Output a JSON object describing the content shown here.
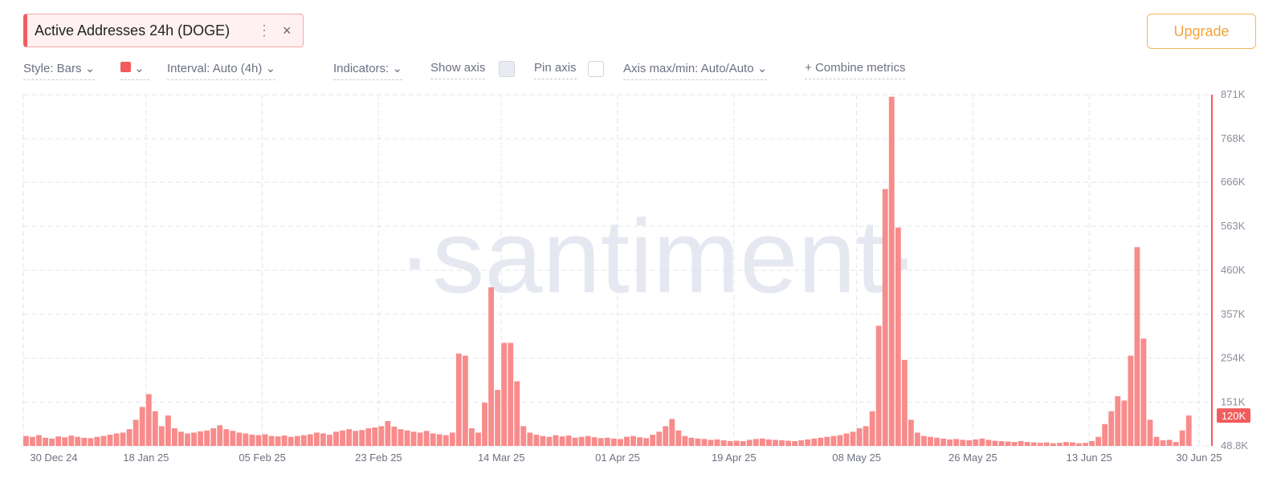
{
  "header": {
    "metric": "Active Addresses 24h (DOGE)",
    "menu": "⋮",
    "close": "×",
    "upgrade": "Upgrade"
  },
  "toolbar": {
    "style": "Style: Bars",
    "interval": "Interval: Auto (4h)",
    "indicators": "Indicators:",
    "show_axis": "Show axis",
    "pin_axis": "Pin axis",
    "axis_maxmin": "Axis max/min: Auto/Auto",
    "combine": "Combine metrics",
    "combine_icon": "+"
  },
  "watermark": "·santiment·",
  "chart_data": {
    "type": "bar",
    "color": "#f88b8b",
    "axis_color": "#f25c5c",
    "grid": true,
    "ylim": [
      48.8,
      871
    ],
    "yticks": [
      {
        "value": 48.8,
        "label": "48.8K"
      },
      {
        "value": 151,
        "label": "151K"
      },
      {
        "value": 254,
        "label": "254K"
      },
      {
        "value": 357,
        "label": "357K"
      },
      {
        "value": 460,
        "label": "460K"
      },
      {
        "value": 563,
        "label": "563K"
      },
      {
        "value": 666,
        "label": "666K"
      },
      {
        "value": 768,
        "label": "768K"
      },
      {
        "value": 871,
        "label": "871K"
      }
    ],
    "xlim": [
      "2024-12-30",
      "2025-07-02"
    ],
    "xticks": [
      {
        "value": "2024-12-30",
        "label": "30 Dec 24"
      },
      {
        "value": "2025-01-18",
        "label": "18 Jan 25"
      },
      {
        "value": "2025-02-05",
        "label": "05 Feb 25"
      },
      {
        "value": "2025-02-23",
        "label": "23 Feb 25"
      },
      {
        "value": "2025-03-14",
        "label": "14 Mar 25"
      },
      {
        "value": "2025-04-01",
        "label": "01 Apr 25"
      },
      {
        "value": "2025-04-19",
        "label": "19 Apr 25"
      },
      {
        "value": "2025-05-08",
        "label": "08 May 25"
      },
      {
        "value": "2025-05-26",
        "label": "26 May 25"
      },
      {
        "value": "2025-06-13",
        "label": "13 Jun 25"
      },
      {
        "value": "2025-06-30",
        "label": "30 Jun 25"
      }
    ],
    "current_value": 120,
    "current_value_label": "120K",
    "x": [
      "2024-12-30",
      "2024-12-31",
      "2025-01-01",
      "2025-01-02",
      "2025-01-03",
      "2025-01-04",
      "2025-01-05",
      "2025-01-06",
      "2025-01-07",
      "2025-01-08",
      "2025-01-09",
      "2025-01-10",
      "2025-01-11",
      "2025-01-12",
      "2025-01-13",
      "2025-01-14",
      "2025-01-15",
      "2025-01-16",
      "2025-01-17",
      "2025-01-18",
      "2025-01-19",
      "2025-01-20",
      "2025-01-21",
      "2025-01-22",
      "2025-01-23",
      "2025-01-24",
      "2025-01-25",
      "2025-01-26",
      "2025-01-27",
      "2025-01-28",
      "2025-01-29",
      "2025-01-30",
      "2025-01-31",
      "2025-02-01",
      "2025-02-02",
      "2025-02-03",
      "2025-02-04",
      "2025-02-05",
      "2025-02-06",
      "2025-02-07",
      "2025-02-08",
      "2025-02-09",
      "2025-02-10",
      "2025-02-11",
      "2025-02-12",
      "2025-02-13",
      "2025-02-14",
      "2025-02-15",
      "2025-02-16",
      "2025-02-17",
      "2025-02-18",
      "2025-02-19",
      "2025-02-20",
      "2025-02-21",
      "2025-02-22",
      "2025-02-23",
      "2025-02-24",
      "2025-02-25",
      "2025-02-26",
      "2025-02-27",
      "2025-02-28",
      "2025-03-01",
      "2025-03-02",
      "2025-03-03",
      "2025-03-04",
      "2025-03-05",
      "2025-03-06",
      "2025-03-07",
      "2025-03-08",
      "2025-03-09",
      "2025-03-10",
      "2025-03-11",
      "2025-03-12",
      "2025-03-13",
      "2025-03-14",
      "2025-03-15",
      "2025-03-16",
      "2025-03-17",
      "2025-03-18",
      "2025-03-19",
      "2025-03-20",
      "2025-03-21",
      "2025-03-22",
      "2025-03-23",
      "2025-03-24",
      "2025-03-25",
      "2025-03-26",
      "2025-03-27",
      "2025-03-28",
      "2025-03-29",
      "2025-03-30",
      "2025-03-31",
      "2025-04-01",
      "2025-04-02",
      "2025-04-03",
      "2025-04-04",
      "2025-04-05",
      "2025-04-06",
      "2025-04-07",
      "2025-04-08",
      "2025-04-09",
      "2025-04-10",
      "2025-04-11",
      "2025-04-12",
      "2025-04-13",
      "2025-04-14",
      "2025-04-15",
      "2025-04-16",
      "2025-04-17",
      "2025-04-18",
      "2025-04-19",
      "2025-04-20",
      "2025-04-21",
      "2025-04-22",
      "2025-04-23",
      "2025-04-24",
      "2025-04-25",
      "2025-04-26",
      "2025-04-27",
      "2025-04-28",
      "2025-04-29",
      "2025-04-30",
      "2025-05-01",
      "2025-05-02",
      "2025-05-03",
      "2025-05-04",
      "2025-05-05",
      "2025-05-06",
      "2025-05-07",
      "2025-05-08",
      "2025-05-09",
      "2025-05-10",
      "2025-05-11",
      "2025-05-12",
      "2025-05-13",
      "2025-05-14",
      "2025-05-15",
      "2025-05-16",
      "2025-05-17",
      "2025-05-18",
      "2025-05-19",
      "2025-05-20",
      "2025-05-21",
      "2025-05-22",
      "2025-05-23",
      "2025-05-24",
      "2025-05-25",
      "2025-05-26",
      "2025-05-27",
      "2025-05-28",
      "2025-05-29",
      "2025-05-30",
      "2025-05-31",
      "2025-06-01",
      "2025-06-02",
      "2025-06-03",
      "2025-06-04",
      "2025-06-05",
      "2025-06-06",
      "2025-06-07",
      "2025-06-08",
      "2025-06-09",
      "2025-06-10",
      "2025-06-11",
      "2025-06-12",
      "2025-06-13",
      "2025-06-14",
      "2025-06-15",
      "2025-06-16",
      "2025-06-17",
      "2025-06-18",
      "2025-06-19",
      "2025-06-20",
      "2025-06-21",
      "2025-06-22",
      "2025-06-23",
      "2025-06-24",
      "2025-06-25",
      "2025-06-26",
      "2025-06-27",
      "2025-06-28"
    ],
    "values": [
      72,
      70,
      74,
      68,
      66,
      71,
      69,
      73,
      70,
      68,
      67,
      70,
      72,
      75,
      78,
      80,
      88,
      110,
      140,
      170,
      130,
      95,
      120,
      90,
      82,
      78,
      80,
      83,
      85,
      90,
      97,
      88,
      84,
      80,
      78,
      75,
      74,
      76,
      72,
      71,
      73,
      70,
      72,
      74,
      76,
      80,
      78,
      75,
      82,
      85,
      88,
      84,
      86,
      90,
      92,
      95,
      107,
      94,
      88,
      85,
      82,
      80,
      84,
      78,
      76,
      74,
      80,
      265,
      260,
      90,
      80,
      150,
      420,
      180,
      290,
      290,
      200,
      95,
      80,
      75,
      72,
      70,
      74,
      71,
      73,
      68,
      70,
      72,
      69,
      67,
      68,
      66,
      65,
      70,
      72,
      69,
      67,
      75,
      82,
      95,
      112,
      85,
      72,
      68,
      66,
      65,
      63,
      64,
      62,
      60,
      61,
      60,
      63,
      65,
      66,
      64,
      63,
      62,
      61,
      60,
      62,
      64,
      66,
      68,
      70,
      72,
      74,
      78,
      82,
      90,
      95,
      130,
      330,
      650,
      866,
      560,
      250,
      110,
      80,
      72,
      70,
      68,
      66,
      64,
      65,
      63,
      62,
      64,
      66,
      63,
      61,
      60,
      59,
      58,
      60,
      58,
      57,
      56,
      57,
      55,
      56,
      58,
      57,
      55,
      56,
      60,
      70,
      100,
      130,
      165,
      155,
      260,
      514,
      300,
      110,
      70,
      62,
      63,
      58,
      85,
      120
    ]
  }
}
